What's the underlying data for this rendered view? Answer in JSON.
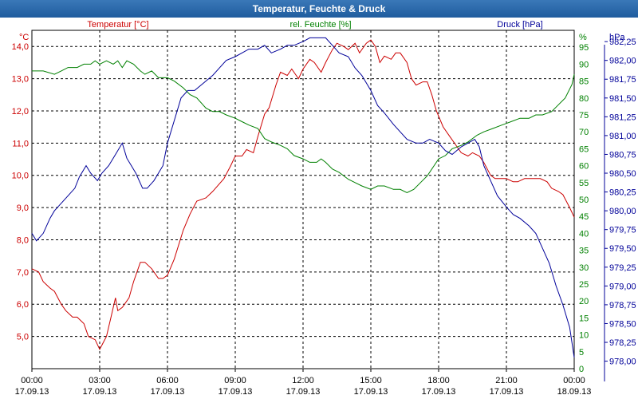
{
  "window": {
    "title": "Temperatur, Feuchte & Druck"
  },
  "chart_data": {
    "type": "line",
    "title": "Temperatur, Feuchte & Druck",
    "x": {
      "start_hour": 0,
      "end_hour": 24,
      "tick_labels": [
        {
          "time": "00:00",
          "date": "17.09.13"
        },
        {
          "time": "03:00",
          "date": "17.09.13"
        },
        {
          "time": "06:00",
          "date": "17.09.13"
        },
        {
          "time": "09:00",
          "date": "17.09.13"
        },
        {
          "time": "12:00",
          "date": "17.09.13"
        },
        {
          "time": "15:00",
          "date": "17.09.13"
        },
        {
          "time": "18:00",
          "date": "17.09.13"
        },
        {
          "time": "21:00",
          "date": "17.09.13"
        },
        {
          "time": "00:00",
          "date": "18.09.13"
        }
      ]
    },
    "axes": {
      "temperature": {
        "unit": "°C",
        "label": "Temperatur [°C]",
        "color": "#cc0000",
        "range": [
          4.0,
          14.5
        ],
        "ticks": [
          "5,0",
          "6,0",
          "7,0",
          "8,0",
          "9,0",
          "10,0",
          "11,0",
          "12,0",
          "13,0",
          "14,0"
        ],
        "tick_values": [
          5,
          6,
          7,
          8,
          9,
          10,
          11,
          12,
          13,
          14
        ]
      },
      "humidity": {
        "unit": "%",
        "label": "rel. Feuchte [%]",
        "color": "#008000",
        "range": [
          0,
          100
        ],
        "ticks": [
          "0",
          "5",
          "10",
          "15",
          "20",
          "25",
          "30",
          "35",
          "40",
          "45",
          "50",
          "55",
          "60",
          "65",
          "70",
          "75",
          "80",
          "85",
          "90",
          "95"
        ],
        "tick_values": [
          0,
          5,
          10,
          15,
          20,
          25,
          30,
          35,
          40,
          45,
          50,
          55,
          60,
          65,
          70,
          75,
          80,
          85,
          90,
          95
        ]
      },
      "pressure": {
        "unit": "hPa",
        "label": "Druck [hPa]",
        "color": "#000099",
        "range": [
          977.9,
          982.4
        ],
        "ticks": [
          "978,00",
          "978,25",
          "978,50",
          "978,75",
          "979,00",
          "979,25",
          "979,50",
          "979,75",
          "980,00",
          "980,25",
          "980,50",
          "980,75",
          "981,00",
          "981,25",
          "981,50",
          "981,75",
          "982,00",
          "982,25"
        ],
        "tick_values": [
          978.0,
          978.25,
          978.5,
          978.75,
          979.0,
          979.25,
          979.5,
          979.75,
          980.0,
          980.25,
          980.5,
          980.75,
          981.0,
          981.25,
          981.5,
          981.75,
          982.0,
          982.25
        ]
      }
    },
    "series": [
      {
        "name": "Temperatur",
        "axis": "temperature",
        "points": [
          [
            0,
            7.1
          ],
          [
            0.3,
            7.0
          ],
          [
            0.5,
            6.7
          ],
          [
            0.8,
            6.5
          ],
          [
            1.0,
            6.4
          ],
          [
            1.3,
            6.0
          ],
          [
            1.5,
            5.8
          ],
          [
            1.8,
            5.6
          ],
          [
            2.0,
            5.6
          ],
          [
            2.3,
            5.4
          ],
          [
            2.5,
            5.0
          ],
          [
            2.8,
            4.9
          ],
          [
            3.0,
            4.6
          ],
          [
            3.3,
            5.0
          ],
          [
            3.5,
            5.6
          ],
          [
            3.7,
            6.2
          ],
          [
            3.8,
            5.8
          ],
          [
            4.0,
            5.9
          ],
          [
            4.3,
            6.2
          ],
          [
            4.5,
            6.7
          ],
          [
            4.8,
            7.3
          ],
          [
            5.0,
            7.3
          ],
          [
            5.3,
            7.1
          ],
          [
            5.6,
            6.8
          ],
          [
            5.8,
            6.8
          ],
          [
            6.0,
            6.9
          ],
          [
            6.3,
            7.4
          ],
          [
            6.7,
            8.3
          ],
          [
            7.0,
            8.8
          ],
          [
            7.3,
            9.2
          ],
          [
            7.7,
            9.3
          ],
          [
            8.0,
            9.5
          ],
          [
            8.5,
            9.9
          ],
          [
            8.8,
            10.3
          ],
          [
            9.0,
            10.6
          ],
          [
            9.3,
            10.6
          ],
          [
            9.5,
            10.8
          ],
          [
            9.8,
            10.7
          ],
          [
            10.0,
            11.2
          ],
          [
            10.3,
            11.9
          ],
          [
            10.5,
            12.1
          ],
          [
            10.8,
            12.8
          ],
          [
            11.0,
            13.2
          ],
          [
            11.3,
            13.1
          ],
          [
            11.5,
            13.3
          ],
          [
            11.8,
            13.0
          ],
          [
            12.0,
            13.3
          ],
          [
            12.3,
            13.6
          ],
          [
            12.5,
            13.5
          ],
          [
            12.8,
            13.2
          ],
          [
            13.0,
            13.5
          ],
          [
            13.3,
            13.9
          ],
          [
            13.5,
            14.1
          ],
          [
            13.8,
            14.0
          ],
          [
            14.0,
            13.9
          ],
          [
            14.3,
            14.1
          ],
          [
            14.5,
            13.8
          ],
          [
            14.8,
            14.1
          ],
          [
            15.0,
            14.2
          ],
          [
            15.2,
            14.0
          ],
          [
            15.4,
            13.5
          ],
          [
            15.6,
            13.7
          ],
          [
            15.9,
            13.6
          ],
          [
            16.1,
            13.8
          ],
          [
            16.3,
            13.8
          ],
          [
            16.6,
            13.5
          ],
          [
            16.8,
            13.0
          ],
          [
            17.0,
            12.8
          ],
          [
            17.3,
            12.9
          ],
          [
            17.5,
            12.9
          ],
          [
            17.7,
            12.5
          ],
          [
            17.9,
            12.0
          ],
          [
            18.2,
            11.5
          ],
          [
            18.5,
            11.2
          ],
          [
            18.8,
            10.9
          ],
          [
            19.0,
            10.7
          ],
          [
            19.3,
            10.6
          ],
          [
            19.5,
            10.7
          ],
          [
            19.8,
            10.6
          ],
          [
            20.0,
            10.4
          ],
          [
            20.3,
            10.0
          ],
          [
            20.5,
            9.9
          ],
          [
            21.0,
            9.9
          ],
          [
            21.3,
            9.8
          ],
          [
            21.5,
            9.8
          ],
          [
            21.8,
            9.9
          ],
          [
            22.0,
            9.9
          ],
          [
            22.3,
            9.9
          ],
          [
            22.5,
            9.9
          ],
          [
            22.8,
            9.8
          ],
          [
            23.0,
            9.6
          ],
          [
            23.3,
            9.5
          ],
          [
            23.5,
            9.4
          ],
          [
            23.8,
            9.0
          ],
          [
            24.0,
            8.7
          ]
        ]
      },
      {
        "name": "rel. Feuchte",
        "axis": "humidity",
        "points": [
          [
            0,
            88
          ],
          [
            0.5,
            88
          ],
          [
            1.0,
            87
          ],
          [
            1.3,
            88
          ],
          [
            1.6,
            89
          ],
          [
            2.0,
            89
          ],
          [
            2.3,
            90
          ],
          [
            2.6,
            90
          ],
          [
            2.8,
            91
          ],
          [
            3.0,
            90
          ],
          [
            3.3,
            91
          ],
          [
            3.6,
            90
          ],
          [
            3.8,
            91
          ],
          [
            4.0,
            89
          ],
          [
            4.2,
            91
          ],
          [
            4.5,
            90
          ],
          [
            4.8,
            88
          ],
          [
            5.0,
            87
          ],
          [
            5.3,
            88
          ],
          [
            5.6,
            86
          ],
          [
            6.0,
            86
          ],
          [
            6.3,
            85
          ],
          [
            6.7,
            83
          ],
          [
            7.0,
            81
          ],
          [
            7.3,
            80
          ],
          [
            7.7,
            77
          ],
          [
            8.0,
            76
          ],
          [
            8.3,
            76
          ],
          [
            8.6,
            75
          ],
          [
            9.0,
            74
          ],
          [
            9.3,
            73
          ],
          [
            9.6,
            72
          ],
          [
            10.0,
            71
          ],
          [
            10.3,
            68
          ],
          [
            10.6,
            67
          ],
          [
            11.0,
            66
          ],
          [
            11.3,
            65
          ],
          [
            11.6,
            63
          ],
          [
            12.0,
            62
          ],
          [
            12.3,
            61
          ],
          [
            12.6,
            61
          ],
          [
            12.8,
            62
          ],
          [
            13.0,
            61
          ],
          [
            13.3,
            59
          ],
          [
            13.6,
            58
          ],
          [
            14.0,
            56
          ],
          [
            14.3,
            55
          ],
          [
            14.6,
            54
          ],
          [
            15.0,
            53
          ],
          [
            15.3,
            54
          ],
          [
            15.6,
            54
          ],
          [
            16.0,
            53
          ],
          [
            16.3,
            53
          ],
          [
            16.6,
            52
          ],
          [
            16.9,
            53
          ],
          [
            17.2,
            55
          ],
          [
            17.5,
            57
          ],
          [
            17.8,
            60
          ],
          [
            18.0,
            62
          ],
          [
            18.3,
            63
          ],
          [
            18.6,
            65
          ],
          [
            19.0,
            66
          ],
          [
            19.3,
            67
          ],
          [
            19.7,
            69
          ],
          [
            20.0,
            70
          ],
          [
            20.4,
            71
          ],
          [
            20.8,
            72
          ],
          [
            21.2,
            73
          ],
          [
            21.6,
            74
          ],
          [
            22.0,
            74
          ],
          [
            22.3,
            75
          ],
          [
            22.6,
            75
          ],
          [
            23.0,
            76
          ],
          [
            23.3,
            78
          ],
          [
            23.6,
            80
          ],
          [
            23.9,
            84
          ],
          [
            24.0,
            87
          ]
        ]
      },
      {
        "name": "Druck",
        "axis": "pressure",
        "points": [
          [
            0,
            979.7
          ],
          [
            0.2,
            979.6
          ],
          [
            0.5,
            979.7
          ],
          [
            0.8,
            979.9
          ],
          [
            1.0,
            980.0
          ],
          [
            1.3,
            980.1
          ],
          [
            1.6,
            980.2
          ],
          [
            1.9,
            980.3
          ],
          [
            2.1,
            980.45
          ],
          [
            2.4,
            980.6
          ],
          [
            2.6,
            980.5
          ],
          [
            2.9,
            980.4
          ],
          [
            3.1,
            980.5
          ],
          [
            3.4,
            980.6
          ],
          [
            3.6,
            980.7
          ],
          [
            3.8,
            980.8
          ],
          [
            4.0,
            980.9
          ],
          [
            4.2,
            980.7
          ],
          [
            4.4,
            980.6
          ],
          [
            4.6,
            980.5
          ],
          [
            4.9,
            980.3
          ],
          [
            5.1,
            980.3
          ],
          [
            5.4,
            980.4
          ],
          [
            5.8,
            980.6
          ],
          [
            6.0,
            980.9
          ],
          [
            6.3,
            981.2
          ],
          [
            6.6,
            981.5
          ],
          [
            6.9,
            981.6
          ],
          [
            7.2,
            981.6
          ],
          [
            7.6,
            981.7
          ],
          [
            8.0,
            981.8
          ],
          [
            8.3,
            981.9
          ],
          [
            8.6,
            982.0
          ],
          [
            9.0,
            982.05
          ],
          [
            9.3,
            982.1
          ],
          [
            9.6,
            982.15
          ],
          [
            10.0,
            982.15
          ],
          [
            10.3,
            982.2
          ],
          [
            10.6,
            982.1
          ],
          [
            11.0,
            982.15
          ],
          [
            11.3,
            982.2
          ],
          [
            11.6,
            982.2
          ],
          [
            12.0,
            982.25
          ],
          [
            12.3,
            982.3
          ],
          [
            12.6,
            982.3
          ],
          [
            13.0,
            982.3
          ],
          [
            13.3,
            982.2
          ],
          [
            13.6,
            982.1
          ],
          [
            14.0,
            982.05
          ],
          [
            14.3,
            981.9
          ],
          [
            14.6,
            981.8
          ],
          [
            15.0,
            981.6
          ],
          [
            15.3,
            981.4
          ],
          [
            15.6,
            981.3
          ],
          [
            16.0,
            981.15
          ],
          [
            16.3,
            981.05
          ],
          [
            16.6,
            980.95
          ],
          [
            17.0,
            980.9
          ],
          [
            17.3,
            980.9
          ],
          [
            17.6,
            980.95
          ],
          [
            18.0,
            980.9
          ],
          [
            18.3,
            980.8
          ],
          [
            18.6,
            980.75
          ],
          [
            19.0,
            980.85
          ],
          [
            19.3,
            980.9
          ],
          [
            19.6,
            980.95
          ],
          [
            19.8,
            980.85
          ],
          [
            20.0,
            980.6
          ],
          [
            20.3,
            980.4
          ],
          [
            20.6,
            980.2
          ],
          [
            21.0,
            980.05
          ],
          [
            21.3,
            979.95
          ],
          [
            21.6,
            979.9
          ],
          [
            22.0,
            979.8
          ],
          [
            22.3,
            979.7
          ],
          [
            22.6,
            979.5
          ],
          [
            22.9,
            979.3
          ],
          [
            23.2,
            979.0
          ],
          [
            23.5,
            978.75
          ],
          [
            23.8,
            978.45
          ],
          [
            24.0,
            978.05
          ]
        ]
      }
    ]
  }
}
